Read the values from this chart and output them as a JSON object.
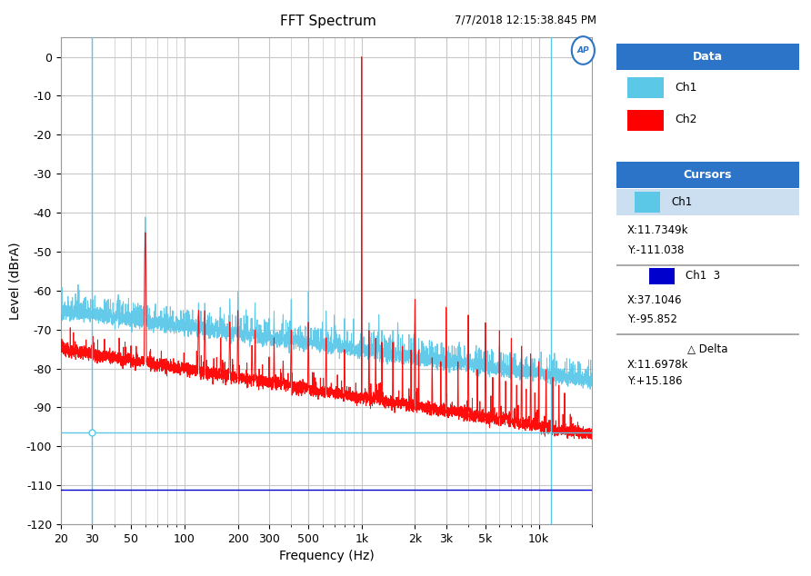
{
  "title": "FFT Spectrum",
  "timestamp": "7/7/2018 12:15:38.845 PM",
  "xlabel": "Frequency (Hz)",
  "ylabel": "Level (dBrA)",
  "xlim_log": [
    20,
    20000
  ],
  "ylim": [
    -120,
    5
  ],
  "yticks": [
    0,
    -10,
    -20,
    -30,
    -40,
    -50,
    -60,
    -70,
    -80,
    -90,
    -100,
    -110,
    -120
  ],
  "xtick_labels": [
    "20",
    "30",
    "50",
    "100",
    "200",
    "300",
    "500",
    "1k",
    "2k",
    "3k",
    "5k",
    "10k"
  ],
  "xtick_values": [
    20,
    30,
    50,
    100,
    200,
    300,
    500,
    1000,
    2000,
    3000,
    5000,
    10000
  ],
  "ch1_color": "#5BC8E8",
  "ch2_color": "#FF0000",
  "cursor1_color": "#5BC8E8",
  "cursor2_color": "#0000CC",
  "cursor_h_y": -96.5,
  "cursor_v_x": 30,
  "cursor2_v_x": 11734.9,
  "cursor2_h_y": -111.038,
  "bg_color": "#FFFFFF",
  "plot_bg_color": "#FFFFFF",
  "grid_color": "#C8C8C8",
  "legend_header_color": "#2B74C8",
  "legend_header_text": "#FFFFFF",
  "ap_logo_color": "#2B74C8",
  "cursor_panel_header_color": "#2B74C8",
  "border_color": "#999999"
}
